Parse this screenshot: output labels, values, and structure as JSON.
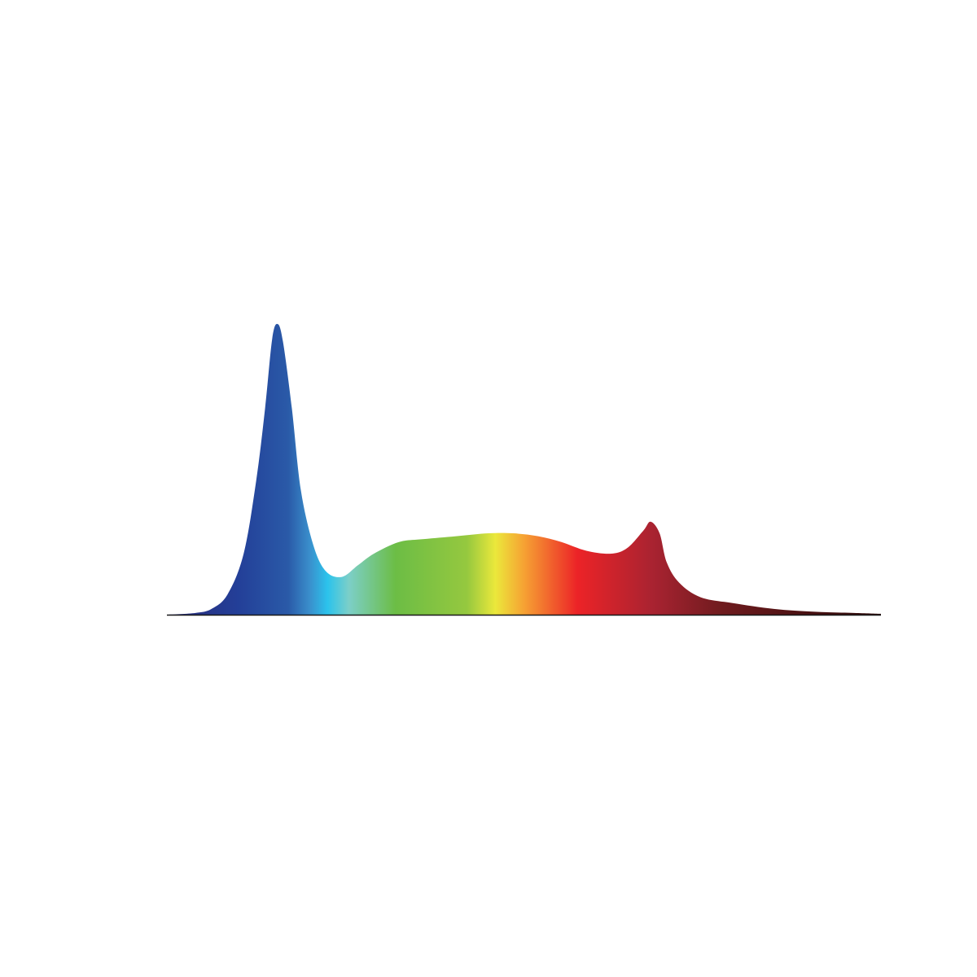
{
  "chart_data": {
    "type": "area",
    "x": [
      380,
      396,
      405,
      414,
      423,
      430,
      435,
      439,
      442,
      445,
      450,
      455,
      462,
      469,
      478,
      487,
      496,
      510,
      524,
      542,
      560,
      574,
      588,
      601,
      615,
      629,
      638,
      647,
      651,
      656,
      660,
      667,
      679,
      697,
      720,
      743,
      765,
      780
    ],
    "values": [
      0,
      0.6,
      2,
      7,
      21,
      46,
      71,
      95,
      100,
      94,
      71,
      43,
      24,
      15,
      13,
      17,
      21,
      25,
      26,
      27,
      28,
      28,
      27,
      25,
      22,
      21,
      23,
      29,
      32,
      28,
      18,
      11,
      6,
      4,
      2,
      1,
      0.6,
      0.3
    ],
    "xlim": [
      380,
      780
    ],
    "ylim": [
      0,
      100
    ]
  }
}
